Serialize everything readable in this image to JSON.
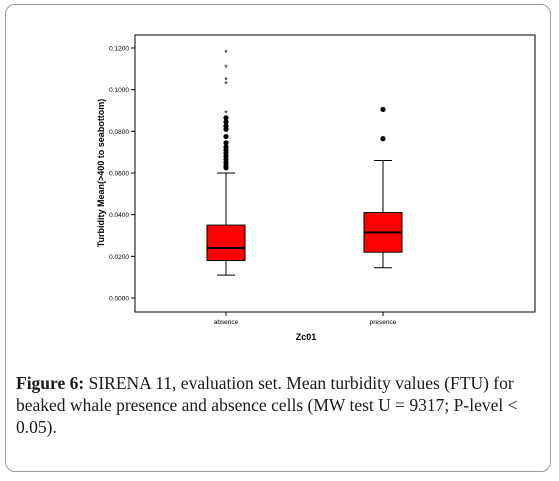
{
  "chart_data": {
    "type": "box",
    "title": "",
    "xlabel": "Zc01",
    "ylabel": "Turbidity Mean(>400 to seabottom)",
    "ylim": [
      0,
      0.125
    ],
    "yticks": [
      "0.0000",
      "0.0200",
      "0.0400",
      "0.0600",
      "0.0800",
      "0.1000",
      "0.1200"
    ],
    "ytick_values": [
      0,
      0.02,
      0.04,
      0.06,
      0.08,
      0.1,
      0.12
    ],
    "categories": [
      "absence",
      "presence"
    ],
    "boxes": [
      {
        "category": "absence",
        "whisker_low": 0.011,
        "q1": 0.018,
        "median": 0.024,
        "q3": 0.035,
        "whisker_high": 0.06,
        "outliers_circle": [
          0.0625,
          0.0635,
          0.065,
          0.0665,
          0.068,
          0.0695,
          0.071,
          0.0725,
          0.0745,
          0.0775,
          0.081,
          0.0825,
          0.0845,
          0.0865
        ],
        "outliers_star": [
          0.089,
          0.103,
          0.105,
          0.111,
          0.118
        ]
      },
      {
        "category": "presence",
        "whisker_low": 0.0145,
        "q1": 0.022,
        "median": 0.0315,
        "q3": 0.041,
        "whisker_high": 0.066,
        "outliers_circle": [
          0.0765,
          0.0905
        ],
        "outliers_star": []
      }
    ],
    "box_color": "#ff0000",
    "grid": false
  },
  "caption": {
    "label": "Figure 6:",
    "text": " SIRENA 11, evaluation set. Mean turbidity values (FTU) for beaked whale presence and absence cells (MW test U = 9317; P-level < 0.05)."
  }
}
